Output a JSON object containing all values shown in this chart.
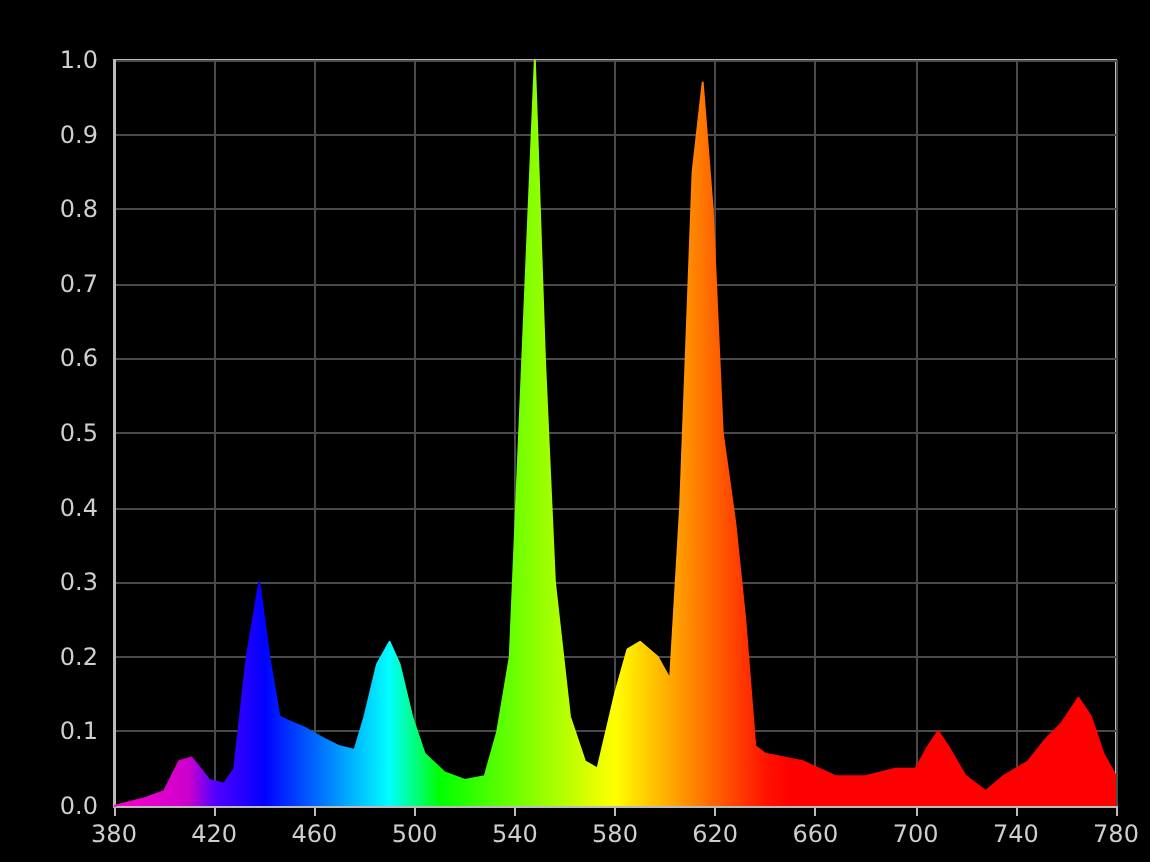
{
  "chart_data": {
    "type": "area",
    "xlim": [
      380,
      780
    ],
    "ylim": [
      0,
      1
    ],
    "xticks": [
      380,
      420,
      460,
      500,
      540,
      580,
      620,
      660,
      700,
      740,
      780
    ],
    "yticks": [
      {
        "value": 0,
        "label": "0.0"
      },
      0.1,
      0.2,
      0.3,
      0.4,
      0.5,
      0.6,
      0.7,
      0.8,
      0.9,
      {
        "value": 1,
        "label": "1.0"
      }
    ],
    "grid": true,
    "series": [
      {
        "x": [
          380,
          392,
          400,
          406,
          411,
          418,
          424,
          428,
          433,
          438,
          442,
          446,
          449,
          456,
          464,
          470,
          476,
          480,
          485,
          490,
          494,
          499,
          504,
          512,
          520,
          528,
          533,
          538,
          543,
          548,
          552,
          556,
          562,
          568,
          573,
          580,
          585,
          590,
          597,
          602,
          606,
          611,
          615,
          619,
          623,
          628,
          632,
          636,
          640,
          655,
          668,
          680,
          692,
          700,
          705,
          709,
          713,
          720,
          728,
          735,
          745,
          752,
          758,
          765,
          770,
          775,
          780
        ],
        "values": [
          0.0,
          0.01,
          0.02,
          0.06,
          0.065,
          0.035,
          0.03,
          0.05,
          0.2,
          0.3,
          0.2,
          0.12,
          0.115,
          0.105,
          0.09,
          0.08,
          0.075,
          0.12,
          0.19,
          0.22,
          0.19,
          0.12,
          0.07,
          0.045,
          0.035,
          0.04,
          0.1,
          0.2,
          0.6,
          1.0,
          0.6,
          0.3,
          0.12,
          0.06,
          0.05,
          0.15,
          0.21,
          0.22,
          0.2,
          0.17,
          0.4,
          0.85,
          0.97,
          0.8,
          0.5,
          0.38,
          0.25,
          0.08,
          0.07,
          0.06,
          0.04,
          0.04,
          0.05,
          0.05,
          0.08,
          0.1,
          0.08,
          0.04,
          0.02,
          0.04,
          0.06,
          0.09,
          0.11,
          0.145,
          0.12,
          0.07,
          0.04
        ]
      }
    ]
  }
}
